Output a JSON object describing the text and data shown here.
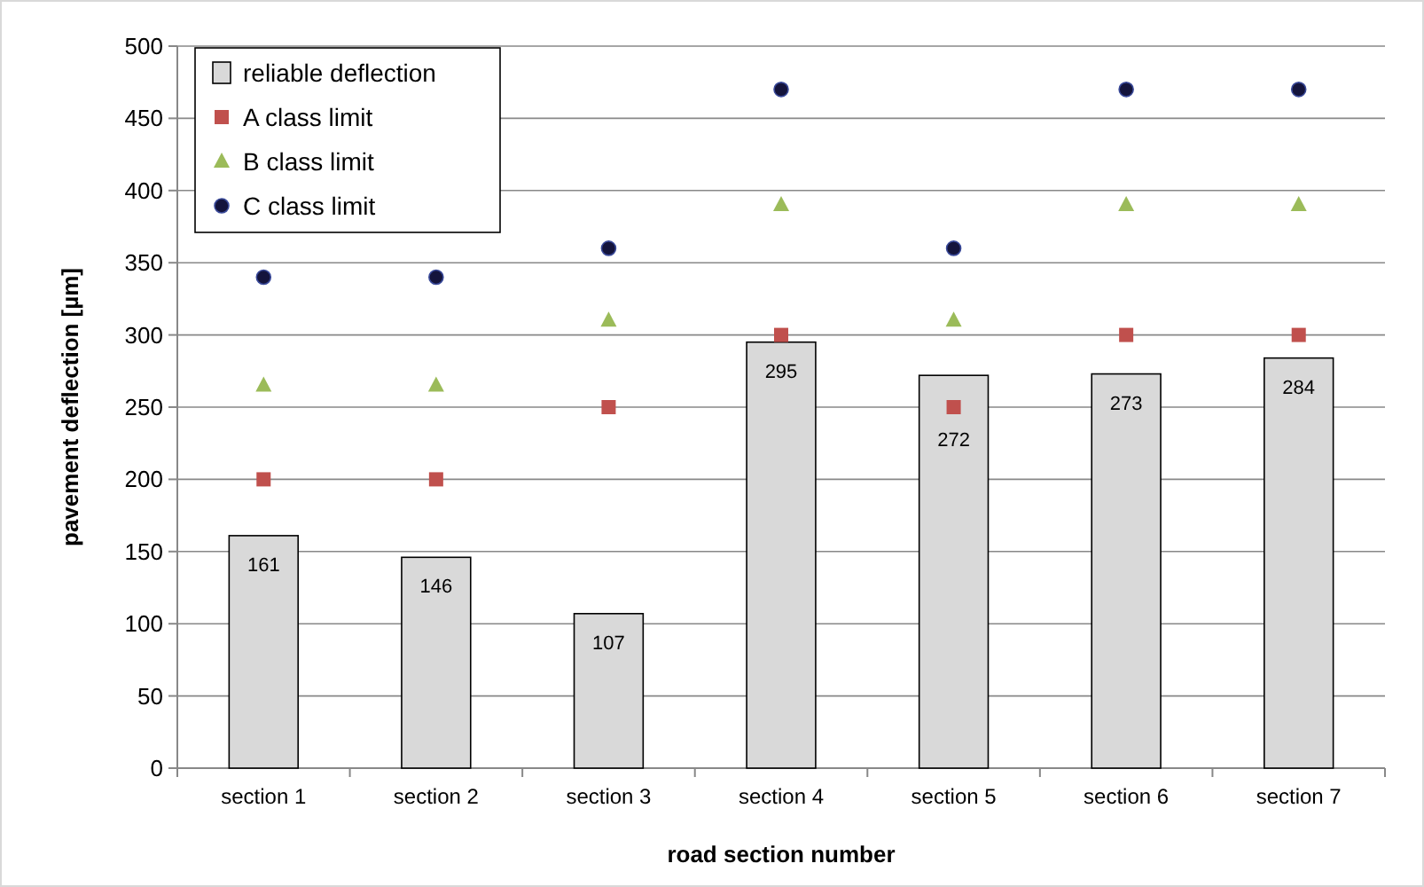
{
  "chart_data": {
    "type": "bar",
    "xlabel": "road section number",
    "ylabel": "pavement deflection [µm]",
    "categories": [
      "section 1",
      "section 2",
      "section 3",
      "section 4",
      "section 5",
      "section 6",
      "section 7"
    ],
    "series": [
      {
        "name": "reliable deflection",
        "color": "#d9d9d9",
        "values": [
          161,
          146,
          107,
          295,
          272,
          273,
          284
        ],
        "value_labels": [
          "161",
          "146",
          "107",
          "295",
          "272",
          "273",
          "284"
        ]
      },
      {
        "name": "A class limit",
        "type": "scatter",
        "marker": "square",
        "color": "#c0504d",
        "values": [
          200,
          200,
          250,
          300,
          250,
          300,
          300
        ]
      },
      {
        "name": "B class limit",
        "type": "scatter",
        "marker": "triangle",
        "color": "#9bbb59",
        "values": [
          265,
          265,
          310,
          390,
          310,
          390,
          390
        ]
      },
      {
        "name": "C class limit",
        "type": "scatter",
        "marker": "circle",
        "color": "#14143c",
        "values": [
          340,
          340,
          360,
          470,
          360,
          470,
          470
        ]
      }
    ],
    "ylim": [
      0,
      500
    ],
    "yticks": [
      0,
      50,
      100,
      150,
      200,
      250,
      300,
      350,
      400,
      450,
      500
    ],
    "grid": "y",
    "legend": "top left"
  }
}
